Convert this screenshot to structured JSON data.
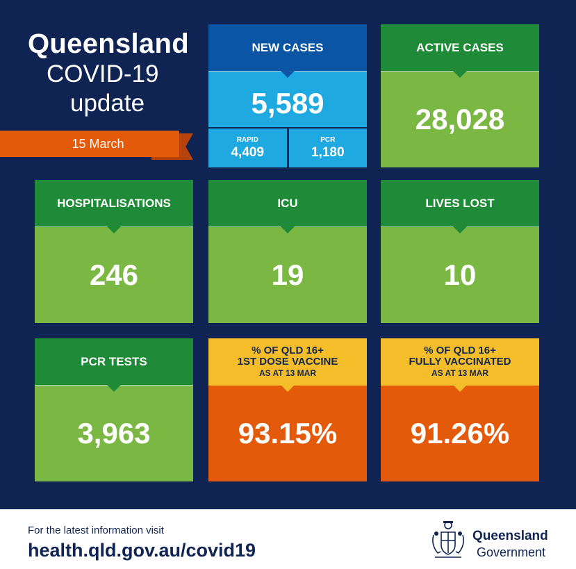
{
  "title": {
    "line1": "Queensland",
    "line2": "COVID-19",
    "line3": "update"
  },
  "date": "15 March",
  "tiles": {
    "new_cases": {
      "label": "NEW CASES",
      "value": "5,589",
      "rapid": {
        "label": "RAPID",
        "value": "4,409"
      },
      "pcr": {
        "label": "PCR",
        "value": "1,180"
      }
    },
    "active_cases": {
      "label": "ACTIVE CASES",
      "value": "28,028"
    },
    "hospitalisations": {
      "label": "HOSPITALISATIONS",
      "value": "246"
    },
    "icu": {
      "label": "ICU",
      "value": "19"
    },
    "lives_lost": {
      "label": "LIVES LOST",
      "value": "10"
    },
    "pcr_tests": {
      "label": "PCR TESTS",
      "value": "3,963"
    },
    "first_dose": {
      "label_line1": "% OF QLD 16+",
      "label_line2": "1ST DOSE VACCINE",
      "label_line3": "AS AT 13 MAR",
      "value": "93.15%"
    },
    "fully_vaccinated": {
      "label_line1": "% OF QLD 16+",
      "label_line2": "FULLY VACCINATED",
      "label_line3": "AS AT 13 MAR",
      "value": "91.26%"
    }
  },
  "footer": {
    "info_text": "For the latest information visit",
    "url": "health.qld.gov.au/covid19",
    "gov_name": "Queensland",
    "gov_sub": "Government"
  },
  "colors": {
    "navy": "#0f2452",
    "green_dark": "#1f8a37",
    "green_light": "#7ab843",
    "blue_dark": "#0b56a4",
    "blue_light": "#1ea9e0",
    "yellow": "#f6bd2a",
    "orange": "#e35a0b"
  },
  "icons": {
    "crest": "queensland-coat-of-arms-icon"
  }
}
